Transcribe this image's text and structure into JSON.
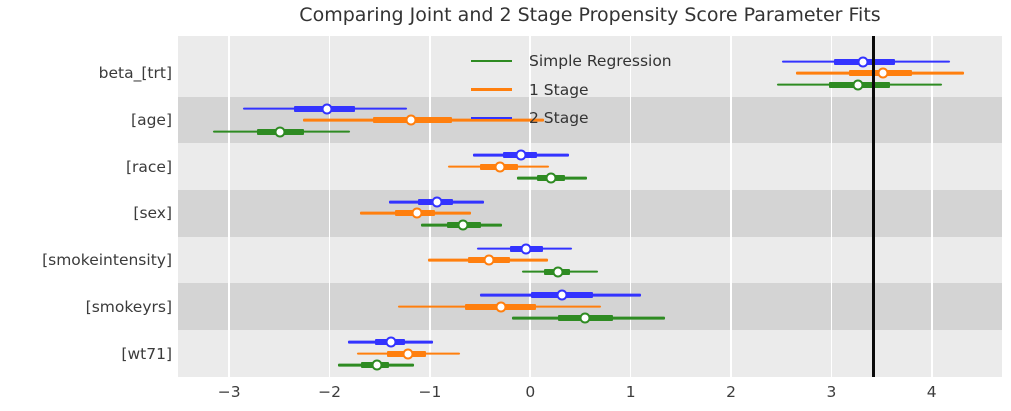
{
  "title": "Comparing Joint and 2 Stage Propensity Score Parameter Fits",
  "colors": {
    "blue_2stage": "#3333ff",
    "orange_1stage": "#ff7f0e",
    "green_simple": "#2e8b22",
    "plot_background": "#ebebeb",
    "shaded_band": "#d4d4d4",
    "gridline": "#ffffff",
    "reference_line": "#0a0a0a",
    "text": "#3b3b3b"
  },
  "chart_data": {
    "type": "scatter",
    "subtype": "forest-plot-with-interval-bars",
    "title": "Comparing Joint and 2 Stage Propensity Score Parameter Fits",
    "categories": [
      "beta_[trt]",
      "[age]",
      "[race]",
      "[sex]",
      "[smokeintensity]",
      "[smokeyrs]",
      "[wt71]"
    ],
    "shaded_rows": [
      1,
      3,
      5
    ],
    "xlim": [
      -3.51,
      4.7
    ],
    "x_ticks": [
      -3,
      -2,
      -1,
      0,
      1,
      2,
      3,
      4
    ],
    "x_tick_labels": [
      "−3",
      "−2",
      "−1",
      "0",
      "1",
      "2",
      "3",
      "4"
    ],
    "reference_line_x": 3.42,
    "grid": "vertical-white-gridlines",
    "legend_position": "upper-center-inside",
    "legend_entries": [
      "Simple Regression",
      "1 Stage",
      "2 Stage"
    ],
    "series": [
      {
        "name": "2 Stage",
        "color": "#3333ff",
        "points": [
          {
            "category": "beta_[trt]",
            "value": 3.32,
            "thick_interval": [
              3.03,
              3.63
            ],
            "thin_interval": [
              2.51,
              4.18
            ]
          },
          {
            "category": "[age]",
            "value": -2.03,
            "thick_interval": [
              -2.35,
              -1.75
            ],
            "thin_interval": [
              -2.86,
              -1.23
            ]
          },
          {
            "category": "[race]",
            "value": -0.09,
            "thick_interval": [
              -0.27,
              0.07
            ],
            "thin_interval": [
              -0.57,
              0.39
            ]
          },
          {
            "category": "[sex]",
            "value": -0.93,
            "thick_interval": [
              -1.12,
              -0.77
            ],
            "thin_interval": [
              -1.41,
              -0.46
            ]
          },
          {
            "category": "[smokeintensity]",
            "value": -0.04,
            "thick_interval": [
              -0.2,
              0.13
            ],
            "thin_interval": [
              -0.53,
              0.42
            ]
          },
          {
            "category": "[smokeyrs]",
            "value": 0.32,
            "thick_interval": [
              0.01,
              0.62
            ],
            "thin_interval": [
              -0.5,
              1.1
            ]
          },
          {
            "category": "[wt71]",
            "value": -1.39,
            "thick_interval": [
              -1.55,
              -1.25
            ],
            "thin_interval": [
              -1.82,
              -0.97
            ]
          }
        ]
      },
      {
        "name": "1 Stage",
        "color": "#ff7f0e",
        "points": [
          {
            "category": "beta_[trt]",
            "value": 3.51,
            "thick_interval": [
              3.18,
              3.8
            ],
            "thin_interval": [
              2.65,
              4.32
            ]
          },
          {
            "category": "[age]",
            "value": -1.19,
            "thick_interval": [
              -1.57,
              -0.78
            ],
            "thin_interval": [
              -2.26,
              0.14
            ]
          },
          {
            "category": "[race]",
            "value": -0.3,
            "thick_interval": [
              -0.5,
              -0.12
            ],
            "thin_interval": [
              -0.82,
              0.19
            ]
          },
          {
            "category": "[sex]",
            "value": -1.13,
            "thick_interval": [
              -1.35,
              -0.95
            ],
            "thin_interval": [
              -1.7,
              -0.59
            ]
          },
          {
            "category": "[smokeintensity]",
            "value": -0.41,
            "thick_interval": [
              -0.62,
              -0.2
            ],
            "thin_interval": [
              -1.02,
              0.18
            ]
          },
          {
            "category": "[smokeyrs]",
            "value": -0.29,
            "thick_interval": [
              -0.65,
              0.06
            ],
            "thin_interval": [
              -1.32,
              0.7
            ]
          },
          {
            "category": "[wt71]",
            "value": -1.22,
            "thick_interval": [
              -1.43,
              -1.04
            ],
            "thin_interval": [
              -1.73,
              -0.7
            ]
          }
        ]
      },
      {
        "name": "Simple Regression",
        "color": "#2e8b22",
        "points": [
          {
            "category": "beta_[trt]",
            "value": 3.27,
            "thick_interval": [
              2.98,
              3.58
            ],
            "thin_interval": [
              2.46,
              4.1
            ]
          },
          {
            "category": "[age]",
            "value": -2.49,
            "thick_interval": [
              -2.72,
              -2.25
            ],
            "thin_interval": [
              -3.16,
              -1.8
            ]
          },
          {
            "category": "[race]",
            "value": 0.21,
            "thick_interval": [
              0.07,
              0.35
            ],
            "thin_interval": [
              -0.13,
              0.57
            ]
          },
          {
            "category": "[sex]",
            "value": -0.67,
            "thick_interval": [
              -0.83,
              -0.49
            ],
            "thin_interval": [
              -1.09,
              -0.28
            ]
          },
          {
            "category": "[smokeintensity]",
            "value": 0.28,
            "thick_interval": [
              0.14,
              0.4
            ],
            "thin_interval": [
              -0.08,
              0.67
            ]
          },
          {
            "category": "[smokeyrs]",
            "value": 0.55,
            "thick_interval": [
              0.28,
              0.82
            ],
            "thin_interval": [
              -0.18,
              1.34
            ]
          },
          {
            "category": "[wt71]",
            "value": -1.53,
            "thick_interval": [
              -1.69,
              -1.41
            ],
            "thin_interval": [
              -1.92,
              -1.16
            ]
          }
        ]
      }
    ]
  }
}
